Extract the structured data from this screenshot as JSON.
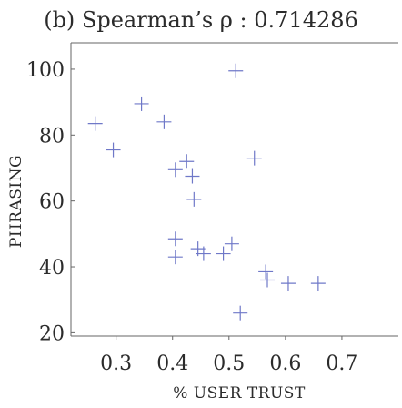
{
  "chart_data": {
    "type": "scatter",
    "title": "(b) Spearman’s ρ : 0.714286",
    "xlabel": "% USER TRUST",
    "ylabel": "PHRASING",
    "xlim": [
      0.22,
      0.8
    ],
    "ylim": [
      19,
      108
    ],
    "xticks": [
      0.3,
      0.4,
      0.5,
      0.6,
      0.7
    ],
    "yticks": [
      20,
      40,
      60,
      80,
      100
    ],
    "xtick_labels": [
      "0.3",
      "0.4",
      "0.5",
      "0.6",
      "0.7"
    ],
    "ytick_labels": [
      "20",
      "40",
      "60",
      "80",
      "100"
    ],
    "grid": false,
    "marker": "plus",
    "marker_color": "#6f78c8",
    "series": [
      {
        "points": [
          {
            "x": 0.263,
            "y": 83.5
          },
          {
            "x": 0.295,
            "y": 75.5
          },
          {
            "x": 0.345,
            "y": 89.5
          },
          {
            "x": 0.385,
            "y": 84.0
          },
          {
            "x": 0.405,
            "y": 69.5
          },
          {
            "x": 0.425,
            "y": 72.0
          },
          {
            "x": 0.435,
            "y": 67.5
          },
          {
            "x": 0.438,
            "y": 60.5
          },
          {
            "x": 0.405,
            "y": 48.5
          },
          {
            "x": 0.405,
            "y": 43.0
          },
          {
            "x": 0.445,
            "y": 45.5
          },
          {
            "x": 0.455,
            "y": 44.0
          },
          {
            "x": 0.49,
            "y": 44.0
          },
          {
            "x": 0.505,
            "y": 47.0
          },
          {
            "x": 0.512,
            "y": 99.5
          },
          {
            "x": 0.545,
            "y": 73.0
          },
          {
            "x": 0.52,
            "y": 26.0
          },
          {
            "x": 0.565,
            "y": 38.5
          },
          {
            "x": 0.568,
            "y": 36.0
          },
          {
            "x": 0.605,
            "y": 35.0
          },
          {
            "x": 0.658,
            "y": 35.0
          }
        ]
      }
    ]
  }
}
